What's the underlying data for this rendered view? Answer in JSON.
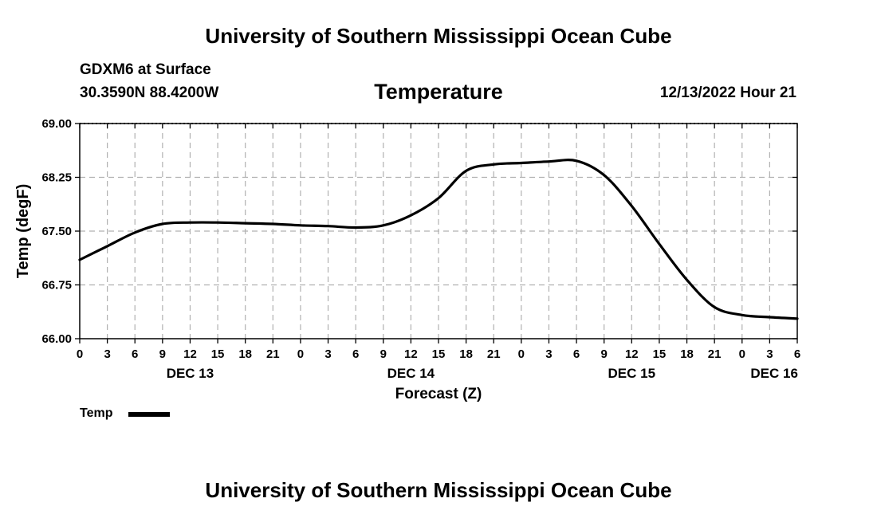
{
  "header": {
    "title": "University of Southern Mississippi Ocean Cube",
    "station": "GDXM6 at Surface",
    "coords": "30.3590N  88.4200W",
    "chart_title": "Temperature",
    "date": "12/13/2022 Hour 21",
    "footer_title": "University of Southern Mississippi Ocean Cube"
  },
  "legend": {
    "label": "Temp"
  },
  "colors": {
    "line": "#000000",
    "grid": "#b0b0b0"
  },
  "chart_data": {
    "type": "line",
    "title": "Temperature",
    "xlabel": "Forecast (Z)",
    "ylabel": "Temp (degF)",
    "ylim": [
      66.0,
      69.0
    ],
    "xlim": [
      0,
      78
    ],
    "yticks": [
      "66.00",
      "66.75",
      "67.50",
      "68.25",
      "69.00"
    ],
    "ytick_values": [
      66.0,
      66.75,
      67.5,
      68.25,
      69.0
    ],
    "xtick_labels": [
      "0",
      "3",
      "6",
      "9",
      "12",
      "15",
      "18",
      "21",
      "0",
      "3",
      "6",
      "9",
      "12",
      "15",
      "18",
      "21",
      "0",
      "3",
      "6",
      "9",
      "12",
      "15",
      "18",
      "21",
      "0",
      "3",
      "6"
    ],
    "day_labels": [
      {
        "hour": 12,
        "label": "DEC 13"
      },
      {
        "hour": 36,
        "label": "DEC 14"
      },
      {
        "hour": 60,
        "label": "DEC 15"
      },
      {
        "hour": 75.5,
        "label": "DEC 16"
      }
    ],
    "grid": true,
    "series": [
      {
        "name": "Temp",
        "x": [
          0,
          3,
          6,
          9,
          12,
          15,
          18,
          21,
          24,
          27,
          30,
          33,
          36,
          39,
          42,
          45,
          48,
          51,
          54,
          57,
          60,
          63,
          66,
          69,
          72,
          75,
          78
        ],
        "y": [
          67.1,
          67.29,
          67.48,
          67.6,
          67.62,
          67.62,
          67.61,
          67.6,
          67.58,
          67.57,
          67.55,
          67.58,
          67.72,
          67.96,
          68.34,
          68.43,
          68.45,
          68.47,
          68.48,
          68.28,
          67.85,
          67.32,
          66.82,
          66.44,
          66.33,
          66.3,
          66.28
        ]
      }
    ]
  }
}
